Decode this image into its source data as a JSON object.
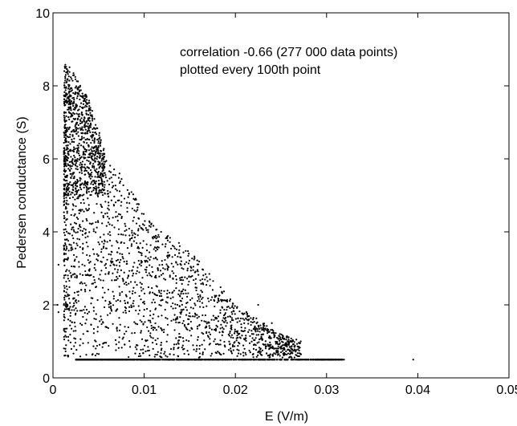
{
  "chart_data": {
    "type": "scatter",
    "title": "",
    "xlabel": "E (V/m)",
    "ylabel": "Pedersen conductance (S)",
    "xlim": [
      0,
      0.05
    ],
    "ylim": [
      0,
      10
    ],
    "x_ticks": [
      0,
      0.01,
      0.02,
      0.03,
      0.04,
      0.05
    ],
    "x_tick_labels": [
      "0",
      "0.01",
      "0.02",
      "0.03",
      "0.04",
      "0.05"
    ],
    "y_ticks": [
      0,
      2,
      4,
      6,
      8,
      10
    ],
    "y_tick_labels": [
      "0",
      "2",
      "4",
      "6",
      "8",
      "10"
    ],
    "grid": false,
    "legend": "none",
    "marker_color": "#000000",
    "annotations": [
      "correlation -0.66 (277 000 data points)",
      "plotted every 100th point"
    ],
    "point_density_envelope": {
      "description_values": "approximate upper envelope of point cloud, E (V/m) vs max conductance (S)",
      "x": [
        0.0012,
        0.002,
        0.003,
        0.004,
        0.006,
        0.008,
        0.01,
        0.012,
        0.015,
        0.02,
        0.025,
        0.03,
        0.032
      ],
      "y_max": [
        8.6,
        8.5,
        8.0,
        7.6,
        6.0,
        5.4,
        4.5,
        4.0,
        3.5,
        2.0,
        1.2,
        0.8,
        0.6
      ]
    },
    "baseline_points": {
      "y": 0.5,
      "x_from": 0.0025,
      "x_to": 0.032
    },
    "outlier_points": [
      {
        "x": 0.0395,
        "y": 0.5
      },
      {
        "x": 0.024,
        "y": 1.5
      },
      {
        "x": 0.0225,
        "y": 2.0
      },
      {
        "x": 0.0006,
        "y": 3.1
      },
      {
        "x": 0.0005,
        "y": 2.0
      },
      {
        "x": 0.0006,
        "y": 1.8
      }
    ]
  }
}
